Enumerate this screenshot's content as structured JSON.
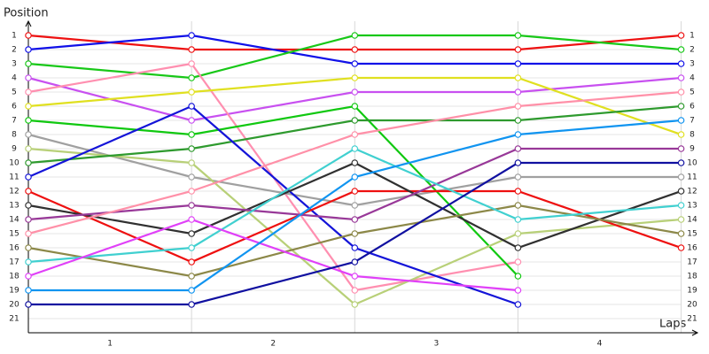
{
  "chart_data": {
    "type": "line",
    "y_label": "Position",
    "x_label": "Laps",
    "x": [
      0,
      1,
      2,
      3,
      4
    ],
    "xlim": [
      0,
      4.1
    ],
    "xticks": [
      {
        "value": 0.5,
        "label": "1"
      },
      {
        "value": 1.5,
        "label": "2"
      },
      {
        "value": 2.5,
        "label": "3"
      },
      {
        "value": 3.5,
        "label": "4"
      }
    ],
    "ylim": [
      0,
      22
    ],
    "inverted": true,
    "yticks": [
      1,
      2,
      3,
      4,
      5,
      6,
      7,
      8,
      9,
      10,
      11,
      12,
      13,
      14,
      15,
      16,
      17,
      18,
      19,
      20,
      21
    ],
    "grid": true,
    "series": [
      {
        "color": "#ee1111",
        "values": [
          1,
          2,
          2,
          2,
          1
        ]
      },
      {
        "color": "#1010e8",
        "values": [
          2,
          1,
          3,
          3,
          3
        ]
      },
      {
        "color": "#18c818",
        "values": [
          3,
          4,
          1,
          1,
          2
        ]
      },
      {
        "color": "#c850f0",
        "values": [
          4,
          7,
          5,
          5,
          4
        ]
      },
      {
        "color": "#ff8fb0",
        "values": [
          5,
          3,
          19,
          17,
          null
        ]
      },
      {
        "color": "#e0e020",
        "values": [
          6,
          5,
          4,
          4,
          8
        ]
      },
      {
        "color": "#10c810",
        "values": [
          7,
          8,
          6,
          18,
          null
        ]
      },
      {
        "color": "#a0a0a0",
        "values": [
          8,
          11,
          13,
          11,
          11
        ]
      },
      {
        "color": "#b8d078",
        "values": [
          9,
          10,
          20,
          15,
          14
        ]
      },
      {
        "color": "#2e9a2e",
        "values": [
          10,
          9,
          7,
          7,
          6
        ]
      },
      {
        "color": "#1414d8",
        "values": [
          11,
          6,
          16,
          20,
          null
        ]
      },
      {
        "color": "#ee1010",
        "values": [
          12,
          17,
          12,
          12,
          16
        ]
      },
      {
        "color": "#303030",
        "values": [
          13,
          15,
          10,
          16,
          12
        ]
      },
      {
        "color": "#983898",
        "values": [
          14,
          13,
          14,
          9,
          9
        ]
      },
      {
        "color": "#ff90a8",
        "values": [
          15,
          12,
          8,
          6,
          5
        ]
      },
      {
        "color": "#8c8848",
        "values": [
          16,
          18,
          15,
          13,
          15
        ]
      },
      {
        "color": "#40d0d0",
        "values": [
          17,
          16,
          9,
          14,
          13
        ]
      },
      {
        "color": "#e040f8",
        "values": [
          18,
          14,
          18,
          19,
          null
        ]
      },
      {
        "color": "#1094f0",
        "values": [
          19,
          19,
          11,
          8,
          7
        ]
      },
      {
        "color": "#1010a0",
        "values": [
          20,
          20,
          17,
          10,
          10
        ]
      }
    ]
  }
}
